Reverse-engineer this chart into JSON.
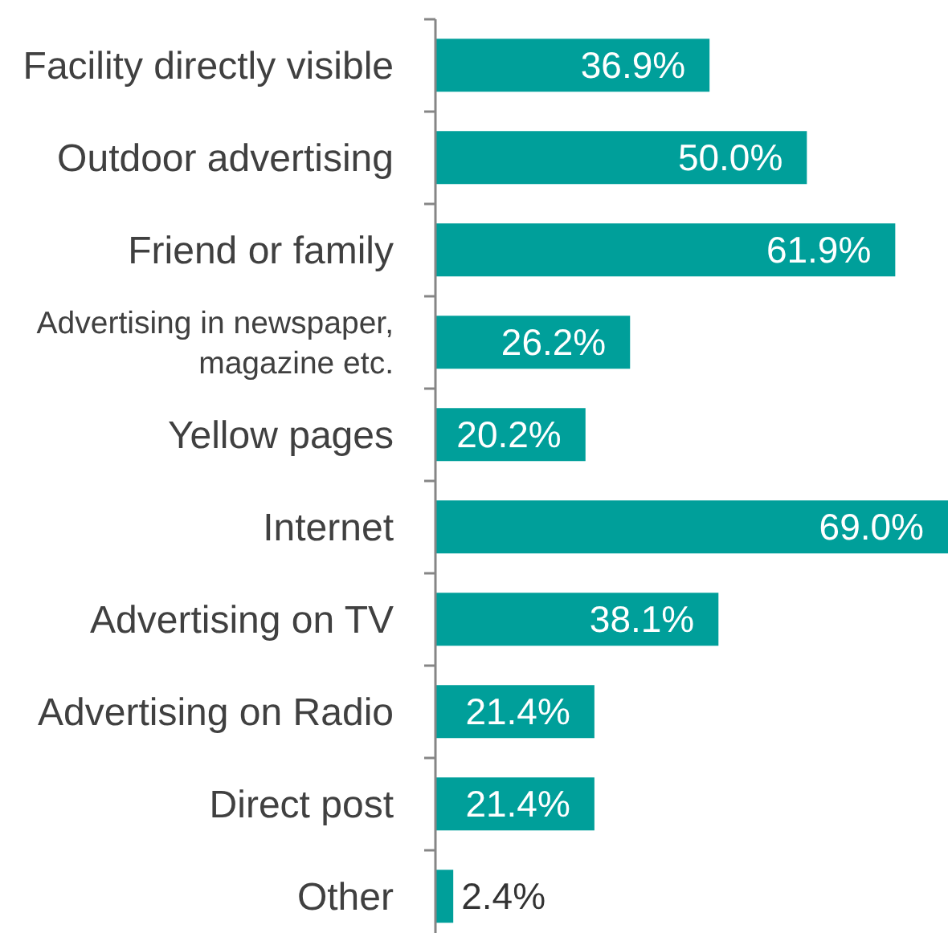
{
  "chart_data": {
    "type": "bar",
    "orientation": "horizontal",
    "tick_labels": "y",
    "color": "#009f9a",
    "categories": [
      "Facility directly visible",
      "Outdoor advertising",
      "Friend or family",
      "Advertising in newspaper, magazine etc.",
      "Yellow pages",
      "Internet",
      "Advertising on TV",
      "Advertising on Radio",
      "Direct post",
      "Other"
    ],
    "values": [
      36.9,
      50.0,
      61.9,
      26.2,
      20.2,
      69.0,
      38.1,
      21.4,
      21.4,
      2.4
    ],
    "value_labels": [
      "36.9%",
      "50.0%",
      "61.9%",
      "26.2%",
      "20.2%",
      "69.0%",
      "38.1%",
      "21.4%",
      "21.4%",
      "2.4%"
    ]
  }
}
